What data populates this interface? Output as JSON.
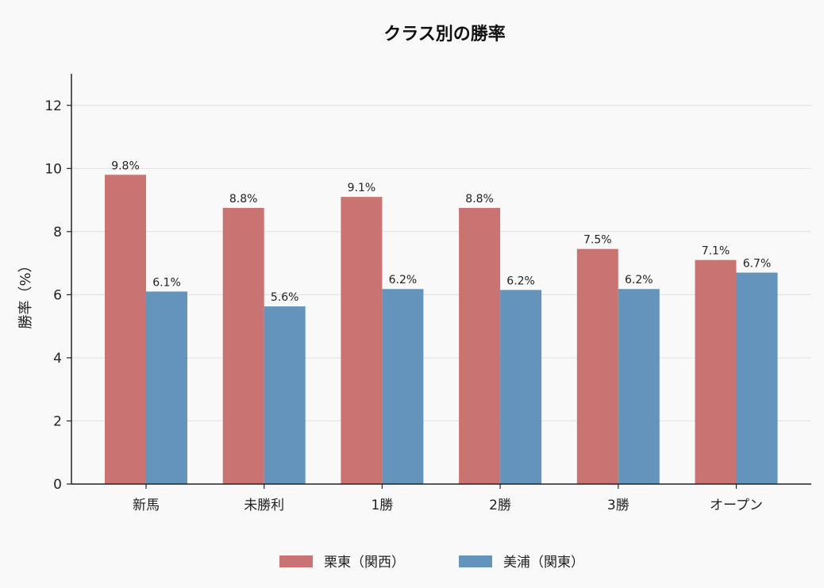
{
  "chart_data": {
    "type": "bar",
    "title": "クラス別の勝率",
    "xlabel": "",
    "ylabel": "勝率（%）",
    "ylim": [
      0,
      13
    ],
    "yticks": [
      0,
      2,
      4,
      6,
      8,
      10,
      12
    ],
    "grid": true,
    "legend_position": "bottom-center",
    "categories": [
      "新馬",
      "未勝利",
      "1勝",
      "2勝",
      "3勝",
      "オープン"
    ],
    "series": [
      {
        "name": "栗東（関西）",
        "color": "#c97472",
        "values": [
          9.8,
          8.75,
          9.1,
          8.75,
          7.45,
          7.1
        ],
        "labels": [
          "9.8%",
          "8.8%",
          "9.1%",
          "8.8%",
          "7.5%",
          "7.1%"
        ]
      },
      {
        "name": "美浦（関東）",
        "color": "#6494bb",
        "values": [
          6.1,
          5.63,
          6.18,
          6.15,
          6.18,
          6.7
        ],
        "labels": [
          "6.1%",
          "5.6%",
          "6.2%",
          "6.2%",
          "6.2%",
          "6.7%"
        ]
      }
    ]
  }
}
